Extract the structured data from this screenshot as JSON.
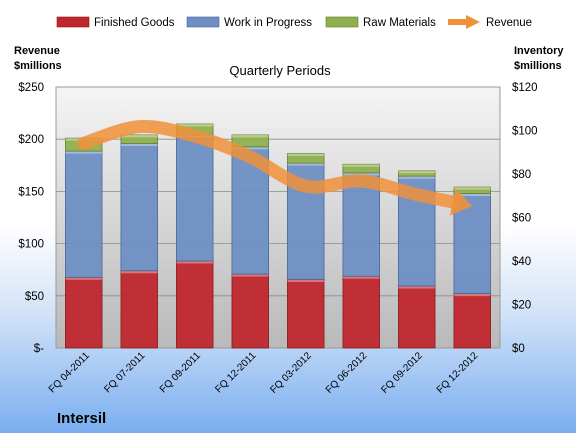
{
  "chart_data": {
    "type": "bar",
    "subtitle": "Quarterly Periods",
    "company": "Intersil",
    "left_axis_title": "Revenue\n$millions",
    "right_axis_title": "Inventory\n$millions",
    "categories": [
      "FQ 04-2011",
      "FQ 07-2011",
      "FQ 09-2011",
      "FQ 12-2011",
      "FQ 03-2012",
      "FQ 06-2012",
      "FQ 09-2012",
      "FQ 12-2012"
    ],
    "series": [
      {
        "name": "Finished Goods",
        "kind": "stacked-bar",
        "axis": "right",
        "color": "#c0272d",
        "values": [
          32.5,
          35.5,
          40,
          34,
          31.5,
          33,
          28.5,
          25
        ]
      },
      {
        "name": "Work in Progress",
        "kind": "stacked-bar",
        "axis": "right",
        "color": "#6f8fc4",
        "values": [
          58,
          58.5,
          58,
          58.5,
          53.5,
          47.5,
          50.5,
          46
        ]
      },
      {
        "name": "Raw Materials",
        "kind": "stacked-bar",
        "axis": "right",
        "color": "#8fb04e",
        "values": [
          6,
          4,
          5,
          5.5,
          4.5,
          4,
          2.5,
          3
        ]
      },
      {
        "name": "Revenue",
        "kind": "line-arrow",
        "axis": "left",
        "color": "#f0913a",
        "values": [
          196,
          212,
          203,
          183,
          155,
          160,
          147,
          136
        ]
      }
    ],
    "left_axis": {
      "min": 0,
      "max": 250,
      "ticks": [
        "$-",
        "$50",
        "$100",
        "$150",
        "$200",
        "$250"
      ]
    },
    "right_axis": {
      "min": 0,
      "max": 120,
      "ticks": [
        "$0",
        "$20",
        "$40",
        "$60",
        "$80",
        "$100",
        "$120"
      ]
    },
    "grid": true,
    "legend_position": "top"
  }
}
